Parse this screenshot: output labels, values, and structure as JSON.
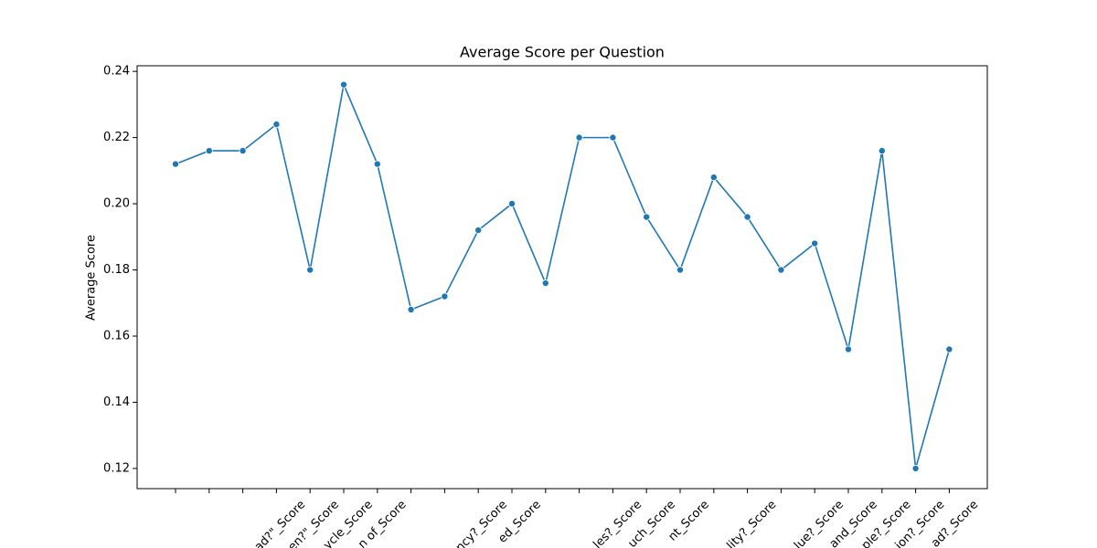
{
  "chart_data": {
    "type": "line",
    "title": "Average Score per Question",
    "y_label": "Average Score",
    "categories": [
      null,
      null,
      null,
      "ad?\"_Score",
      "en?\"_Score",
      "ycle_Score",
      "n of_Score",
      null,
      null,
      "ncy?_Score",
      "ed_Score",
      null,
      null,
      "les?_Score",
      "uch_Score",
      "nt_Score",
      null,
      "lity?_Score",
      null,
      "lue?_Score",
      "and_Score",
      "ple?_Score",
      "ion?_Score",
      "ad?_Score"
    ],
    "series": [
      {
        "name": "Average Score",
        "color": "#1f77b4",
        "values": [
          0.212,
          0.216,
          0.216,
          0.224,
          0.18,
          0.236,
          0.212,
          0.168,
          0.172,
          0.192,
          0.2,
          0.176,
          0.22,
          0.22,
          0.196,
          0.18,
          0.208,
          0.196,
          0.18,
          0.188,
          0.156,
          0.216,
          0.12,
          0.156
        ]
      }
    ],
    "ylim": [
      0.1139,
      0.2417
    ],
    "yticks": [
      0.12,
      0.14,
      0.16,
      0.18,
      {
        "value": 0.2,
        "label": "0.20"
      },
      0.22,
      0.24
    ],
    "grid": false
  }
}
